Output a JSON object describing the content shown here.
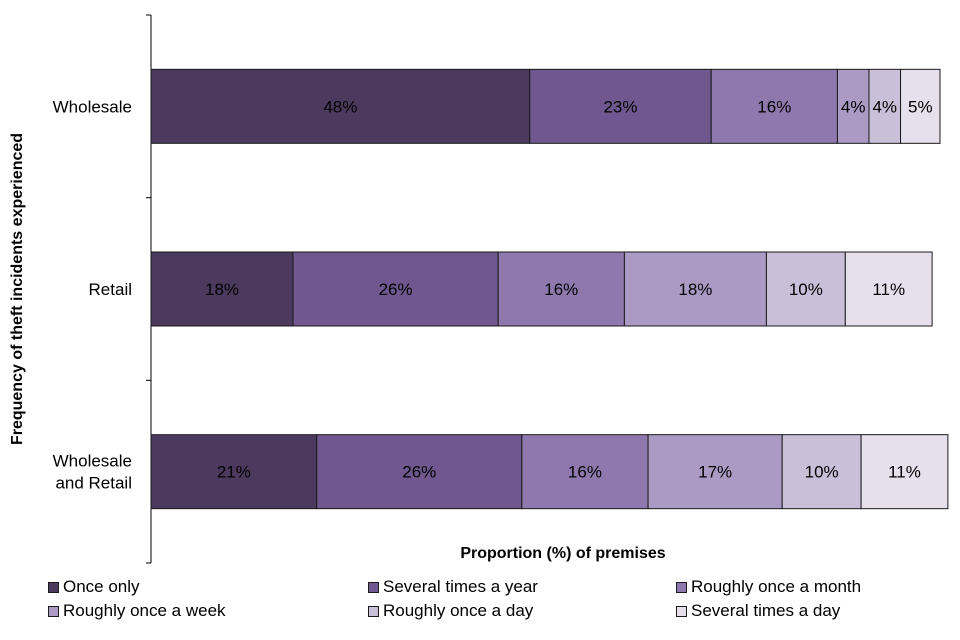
{
  "chart_data": {
    "type": "bar",
    "orientation": "horizontal",
    "stacked": true,
    "percent_stacked": true,
    "categories": [
      "Wholesale",
      "Retail",
      "Wholesale and Retail"
    ],
    "category_lines": [
      [
        "Wholesale"
      ],
      [
        "Retail"
      ],
      [
        "Wholesale",
        "and Retail"
      ]
    ],
    "series": [
      {
        "name": "Once only",
        "values": [
          48,
          18,
          21
        ],
        "labels": [
          "48%",
          "18%",
          "21%"
        ],
        "color": "#4b3a5e"
      },
      {
        "name": "Several times a year",
        "values": [
          23,
          26,
          26
        ],
        "labels": [
          "23%",
          "26%",
          "26%"
        ],
        "color": "#70578f"
      },
      {
        "name": "Roughly once a month",
        "values": [
          16,
          16,
          16
        ],
        "labels": [
          "16%",
          "16%",
          "16%"
        ],
        "color": "#8f78ae"
      },
      {
        "name": "Roughly once a week",
        "values": [
          4,
          18,
          17
        ],
        "labels": [
          "4%",
          "18%",
          "17%"
        ],
        "color": "#ab9bc4"
      },
      {
        "name": "Roughly once a day",
        "values": [
          4,
          10,
          10
        ],
        "labels": [
          "4%",
          "10%",
          "10%"
        ],
        "color": "#c9bfd8"
      },
      {
        "name": "Several times a day",
        "values": [
          5,
          11,
          11
        ],
        "labels": [
          "5%",
          "11%",
          "11%"
        ],
        "color": "#e5e0ec"
      }
    ],
    "xlabel": "Proportion (%) of premises",
    "ylabel": "Frequency of theft incidents experienced",
    "xlim": [
      0,
      100
    ],
    "grid": false,
    "legend_position": "bottom"
  }
}
